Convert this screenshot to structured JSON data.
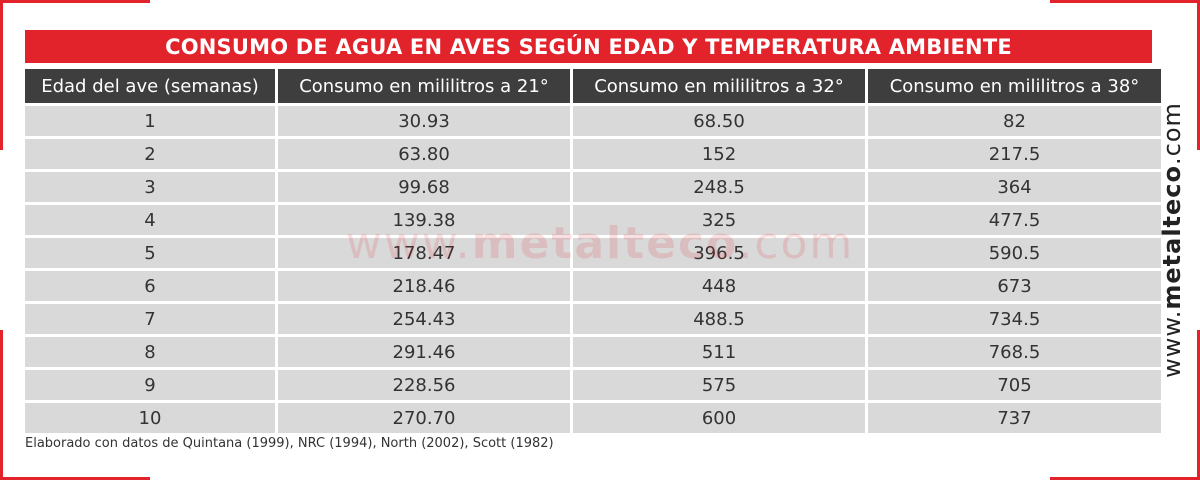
{
  "title": "CONSUMO DE AGUA EN AVES SEGÚN EDAD Y TEMPERATURA AMBIENTE",
  "headers": [
    "Edad del ave (semanas)",
    "Consumo en mililitros a 21°",
    "Consumo en mililitros a 32°",
    "Consumo en mililitros a 38°"
  ],
  "rows": [
    [
      "1",
      "30.93",
      "68.50",
      "82"
    ],
    [
      "2",
      "63.80",
      "152",
      "217.5"
    ],
    [
      "3",
      "99.68",
      "248.5",
      "364"
    ],
    [
      "4",
      "139.38",
      "325",
      "477.5"
    ],
    [
      "5",
      "178.47",
      "396.5",
      "590.5"
    ],
    [
      "6",
      "218.46",
      "448",
      "673"
    ],
    [
      "7",
      "254.43",
      "488.5",
      "734.5"
    ],
    [
      "8",
      "291.46",
      "511",
      "768.5"
    ],
    [
      "9",
      "228.56",
      "575",
      "705"
    ],
    [
      "10",
      "270.70",
      "600",
      "737"
    ]
  ],
  "watermark": {
    "pre": "www.",
    "brand": "metalteco",
    "post": ".com"
  },
  "side_brand": {
    "pre": "www.",
    "brand": "metalteco",
    "post": ".com"
  },
  "footnote": "Elaborado con datos de Quintana (1999), NRC (1994), North (2002), Scott (1982)",
  "colors": {
    "accent": "#e3232b",
    "header_bg": "#3e3e3e",
    "cell_bg": "#d9d9d9"
  }
}
